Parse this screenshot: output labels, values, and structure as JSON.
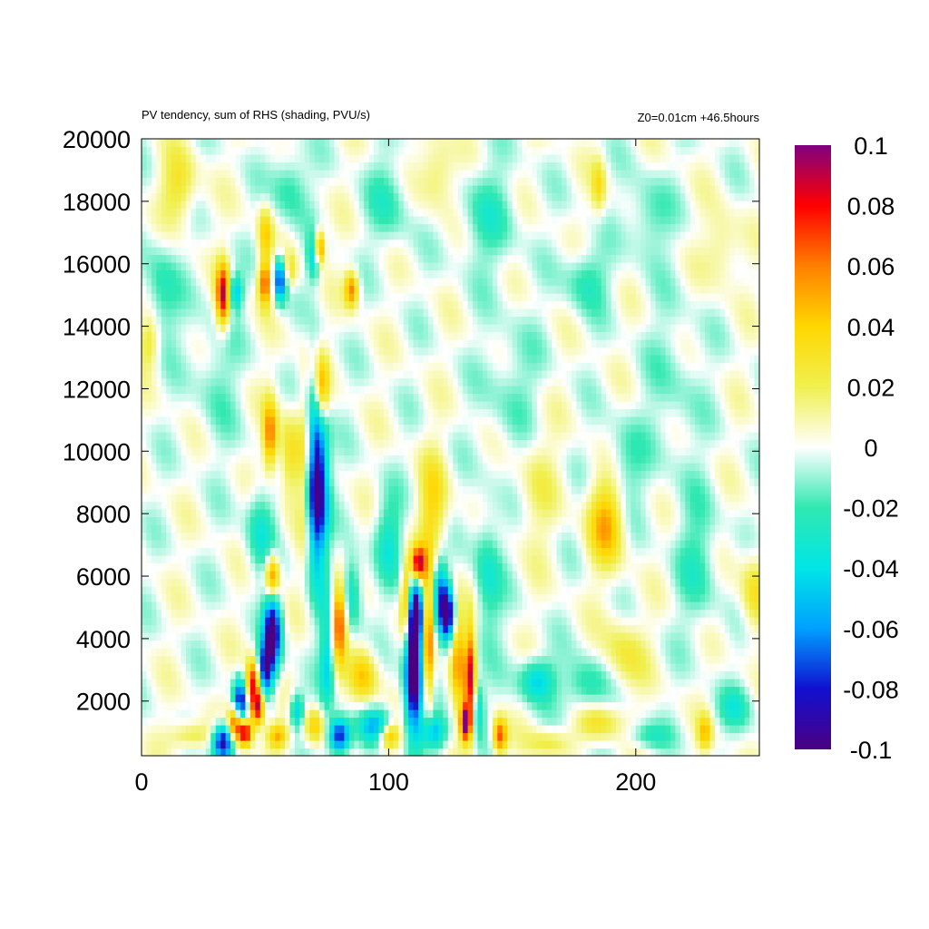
{
  "header": {
    "title": "PV tendency, sum of RHS (shading, PVU/s)",
    "info": "Z0=0.01cm   +46.5hours"
  },
  "chart_data": {
    "type": "heatmap",
    "title": "PV tendency, sum of RHS (shading, PVU/s)",
    "annotation": "Z0=0.01cm   +46.5hours",
    "xlabel": "",
    "ylabel": "",
    "xlim": [
      0,
      250
    ],
    "ylim": [
      250,
      20000
    ],
    "x_ticks": [
      0,
      100,
      200
    ],
    "y_ticks": [
      2000,
      4000,
      6000,
      8000,
      10000,
      12000,
      14000,
      16000,
      18000,
      20000
    ],
    "colorbar": {
      "range": [
        -0.1,
        0.1
      ],
      "ticks": [
        -0.1,
        -0.08,
        -0.06,
        -0.04,
        -0.02,
        0,
        0.02,
        0.04,
        0.06,
        0.08,
        0.1
      ],
      "tick_labels": [
        "-0.1",
        "-0.08",
        "-0.06",
        "-0.04",
        "-0.02",
        "0",
        "0.02",
        "0.04",
        "0.06",
        "0.08",
        "0.1"
      ],
      "colors": [
        "#4b0082",
        "#1010d0",
        "#00a0ff",
        "#00e6e6",
        "#30e8b0",
        "#ffffff",
        "#f0f050",
        "#ffd700",
        "#ff8000",
        "#ff0000",
        "#800080"
      ]
    },
    "features": [
      {
        "x": 33,
        "y": 15000,
        "v": 0.09,
        "sx": 2,
        "sy": 700
      },
      {
        "x": 38,
        "y": 15100,
        "v": -0.05,
        "sx": 2,
        "sy": 400
      },
      {
        "x": 50,
        "y": 15400,
        "v": 0.07,
        "sx": 2,
        "sy": 500
      },
      {
        "x": 56,
        "y": 15500,
        "v": -0.08,
        "sx": 2,
        "sy": 500
      },
      {
        "x": 60,
        "y": 15800,
        "v": 0.03,
        "sx": 2,
        "sy": 400
      },
      {
        "x": 72,
        "y": 16500,
        "v": 0.08,
        "sx": 1.5,
        "sy": 400
      },
      {
        "x": 70,
        "y": 16200,
        "v": -0.05,
        "sx": 2,
        "sy": 500
      },
      {
        "x": 85,
        "y": 15200,
        "v": 0.06,
        "sx": 2,
        "sy": 400
      },
      {
        "x": 50,
        "y": 17000,
        "v": 0.04,
        "sx": 2,
        "sy": 600
      },
      {
        "x": 8,
        "y": 15000,
        "v": -0.025,
        "sx": 5,
        "sy": 1200
      },
      {
        "x": 60,
        "y": 18500,
        "v": -0.025,
        "sx": 5,
        "sy": 800
      },
      {
        "x": 15,
        "y": 18500,
        "v": 0.03,
        "sx": 5,
        "sy": 800
      },
      {
        "x": 71,
        "y": 9000,
        "v": -0.11,
        "sx": 3,
        "sy": 2000
      },
      {
        "x": 66,
        "y": 9500,
        "v": 0.03,
        "sx": 2,
        "sy": 2000
      },
      {
        "x": 73,
        "y": 12000,
        "v": 0.06,
        "sx": 2,
        "sy": 800
      },
      {
        "x": 52,
        "y": 10500,
        "v": 0.06,
        "sx": 2,
        "sy": 800
      },
      {
        "x": 60,
        "y": 9800,
        "v": 0.035,
        "sx": 3,
        "sy": 1000
      },
      {
        "x": 48,
        "y": 7500,
        "v": -0.03,
        "sx": 4,
        "sy": 1000
      },
      {
        "x": 53,
        "y": 6000,
        "v": 0.07,
        "sx": 2,
        "sy": 500
      },
      {
        "x": 53,
        "y": 4200,
        "v": -0.1,
        "sx": 2.5,
        "sy": 900
      },
      {
        "x": 50,
        "y": 3000,
        "v": -0.08,
        "sx": 2,
        "sy": 600
      },
      {
        "x": 45,
        "y": 2600,
        "v": 0.08,
        "sx": 2,
        "sy": 500
      },
      {
        "x": 40,
        "y": 2000,
        "v": -0.09,
        "sx": 2,
        "sy": 500
      },
      {
        "x": 38,
        "y": 1300,
        "v": 0.08,
        "sx": 2,
        "sy": 400
      },
      {
        "x": 33,
        "y": 700,
        "v": -0.1,
        "sx": 3,
        "sy": 400
      },
      {
        "x": 42,
        "y": 1000,
        "v": 0.09,
        "sx": 2,
        "sy": 300
      },
      {
        "x": 47,
        "y": 1800,
        "v": 0.09,
        "sx": 2,
        "sy": 400
      },
      {
        "x": 55,
        "y": 900,
        "v": 0.05,
        "sx": 3,
        "sy": 300
      },
      {
        "x": 20,
        "y": 900,
        "v": 0.03,
        "sx": 6,
        "sy": 300
      },
      {
        "x": 63,
        "y": 1700,
        "v": -0.05,
        "sx": 2,
        "sy": 400
      },
      {
        "x": 80,
        "y": 4600,
        "v": 0.08,
        "sx": 2,
        "sy": 900
      },
      {
        "x": 85,
        "y": 5500,
        "v": -0.04,
        "sx": 3,
        "sy": 800
      },
      {
        "x": 90,
        "y": 2800,
        "v": 0.04,
        "sx": 4,
        "sy": 600
      },
      {
        "x": 75,
        "y": 3300,
        "v": -0.04,
        "sx": 2,
        "sy": 1200
      },
      {
        "x": 80,
        "y": 900,
        "v": -0.09,
        "sx": 3,
        "sy": 400
      },
      {
        "x": 95,
        "y": 1200,
        "v": -0.05,
        "sx": 5,
        "sy": 400
      },
      {
        "x": 70,
        "y": 1200,
        "v": 0.04,
        "sx": 3,
        "sy": 400
      },
      {
        "x": 110,
        "y": 3000,
        "v": -0.12,
        "sx": 2.5,
        "sy": 1400
      },
      {
        "x": 111,
        "y": 4800,
        "v": -0.09,
        "sx": 2,
        "sy": 700
      },
      {
        "x": 112,
        "y": 6400,
        "v": 0.09,
        "sx": 2,
        "sy": 400
      },
      {
        "x": 107,
        "y": 5200,
        "v": 0.06,
        "sx": 1.5,
        "sy": 900
      },
      {
        "x": 116,
        "y": 4000,
        "v": 0.07,
        "sx": 1.5,
        "sy": 1500
      },
      {
        "x": 121,
        "y": 5500,
        "v": -0.06,
        "sx": 2,
        "sy": 800
      },
      {
        "x": 124,
        "y": 4800,
        "v": -0.09,
        "sx": 2,
        "sy": 600
      },
      {
        "x": 128,
        "y": 3500,
        "v": 0.05,
        "sx": 2,
        "sy": 1200
      },
      {
        "x": 133,
        "y": 2800,
        "v": 0.08,
        "sx": 1.5,
        "sy": 1200
      },
      {
        "x": 131,
        "y": 1300,
        "v": 0.1,
        "sx": 1.5,
        "sy": 400
      },
      {
        "x": 136,
        "y": 1800,
        "v": -0.04,
        "sx": 2,
        "sy": 600
      },
      {
        "x": 145,
        "y": 900,
        "v": 0.07,
        "sx": 2,
        "sy": 400
      },
      {
        "x": 118,
        "y": 1000,
        "v": -0.05,
        "sx": 4,
        "sy": 400
      },
      {
        "x": 100,
        "y": 900,
        "v": 0.06,
        "sx": 3,
        "sy": 300
      },
      {
        "x": 118,
        "y": 8200,
        "v": 0.035,
        "sx": 4,
        "sy": 1200
      },
      {
        "x": 100,
        "y": 7200,
        "v": -0.03,
        "sx": 4,
        "sy": 1000
      },
      {
        "x": 140,
        "y": 6000,
        "v": -0.03,
        "sx": 4,
        "sy": 1500
      },
      {
        "x": 188,
        "y": 7800,
        "v": 0.05,
        "sx": 5,
        "sy": 1000
      },
      {
        "x": 195,
        "y": 9500,
        "v": -0.02,
        "sx": 6,
        "sy": 1000
      },
      {
        "x": 248,
        "y": 5500,
        "v": 0.03,
        "sx": 4,
        "sy": 900
      },
      {
        "x": 160,
        "y": 2700,
        "v": -0.045,
        "sx": 5,
        "sy": 500
      },
      {
        "x": 180,
        "y": 2500,
        "v": -0.03,
        "sx": 6,
        "sy": 600
      },
      {
        "x": 195,
        "y": 3500,
        "v": 0.025,
        "sx": 6,
        "sy": 800
      },
      {
        "x": 228,
        "y": 1000,
        "v": 0.04,
        "sx": 2,
        "sy": 400
      },
      {
        "x": 185,
        "y": 1300,
        "v": 0.03,
        "sx": 6,
        "sy": 400
      },
      {
        "x": 165,
        "y": 700,
        "v": 0.025,
        "sx": 6,
        "sy": 300
      },
      {
        "x": 205,
        "y": 900,
        "v": -0.025,
        "sx": 6,
        "sy": 300
      },
      {
        "x": 240,
        "y": 1800,
        "v": -0.025,
        "sx": 5,
        "sy": 500
      },
      {
        "x": 180,
        "y": 15500,
        "v": -0.025,
        "sx": 6,
        "sy": 700
      },
      {
        "x": 185,
        "y": 18500,
        "v": 0.03,
        "sx": 2,
        "sy": 600
      },
      {
        "x": 205,
        "y": 17500,
        "v": -0.02,
        "sx": 6,
        "sy": 900
      },
      {
        "x": 235,
        "y": 16500,
        "v": 0.02,
        "sx": 5,
        "sy": 800
      },
      {
        "x": 140,
        "y": 17500,
        "v": -0.02,
        "sx": 8,
        "sy": 1200
      },
      {
        "x": 120,
        "y": 19000,
        "v": 0.025,
        "sx": 5,
        "sy": 800
      },
      {
        "x": 100,
        "y": 18000,
        "v": -0.02,
        "sx": 6,
        "sy": 1000
      },
      {
        "x": 3,
        "y": 13500,
        "v": 0.03,
        "sx": 3,
        "sy": 600
      },
      {
        "x": 30,
        "y": 12500,
        "v": -0.015,
        "sx": 6,
        "sy": 1500
      },
      {
        "x": 150,
        "y": 12000,
        "v": -0.015,
        "sx": 8,
        "sy": 1500
      },
      {
        "x": 215,
        "y": 12000,
        "v": -0.012,
        "sx": 8,
        "sy": 2000
      },
      {
        "x": 160,
        "y": 9000,
        "v": 0.015,
        "sx": 6,
        "sy": 1500
      },
      {
        "x": 225,
        "y": 6500,
        "v": -0.02,
        "sx": 6,
        "sy": 1500
      }
    ]
  }
}
